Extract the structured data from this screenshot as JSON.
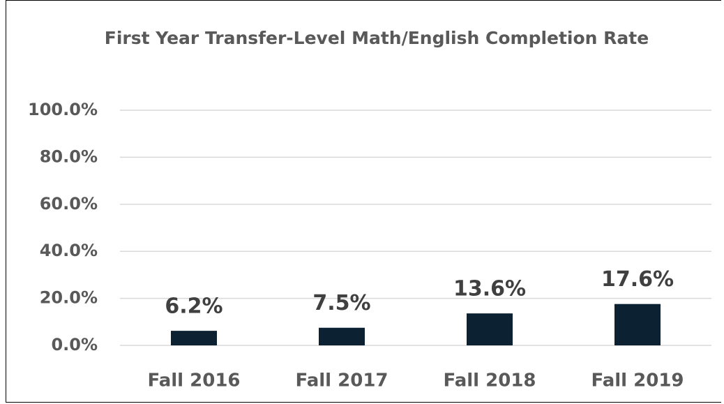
{
  "chart_data": {
    "type": "bar",
    "title": "First Year Transfer-Level Math/English Completion Rate",
    "categories": [
      "Fall 2016",
      "Fall 2017",
      "Fall 2018",
      "Fall 2019"
    ],
    "values": [
      6.2,
      7.5,
      13.6,
      17.6
    ],
    "value_labels": [
      "6.2%",
      "7.5%",
      "13.6%",
      "17.6%"
    ],
    "color": "#0c2233",
    "ylim": [
      0,
      100
    ],
    "yticks": [
      {
        "value": 0,
        "label": "0.0%"
      },
      {
        "value": 20,
        "label": "20.0%"
      },
      {
        "value": 40,
        "label": "40.0%"
      },
      {
        "value": 60,
        "label": "60.0%"
      },
      {
        "value": 80,
        "label": "80.0%"
      },
      {
        "value": 100,
        "label": "100.0%"
      }
    ],
    "grid": true
  }
}
